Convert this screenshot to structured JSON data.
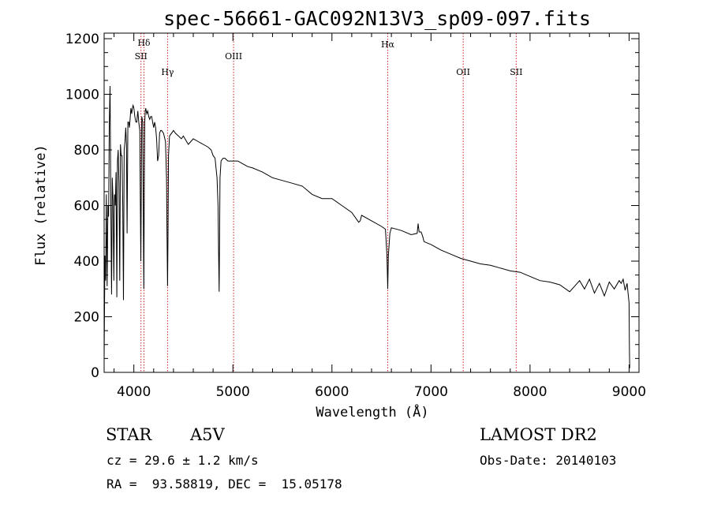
{
  "chart_data": {
    "type": "line",
    "title": "spec-56661-GAC092N13V3_sp09-097.fits",
    "xlabel": "Wavelength (Å)",
    "ylabel": "Flux (relative)",
    "xlim": [
      3700,
      9100
    ],
    "ylim": [
      0,
      1220
    ],
    "xticks": [
      4000,
      5000,
      6000,
      7000,
      8000,
      9000
    ],
    "yticks": [
      0,
      200,
      400,
      600,
      800,
      1000,
      1200
    ],
    "grid": false,
    "series": [
      {
        "x": [
          3700,
          3708,
          3715,
          3722,
          3730,
          3738,
          3745,
          3752,
          3760,
          3768,
          3775,
          3782,
          3790,
          3798,
          3805,
          3812,
          3820,
          3828,
          3835,
          3842,
          3850,
          3858,
          3865,
          3872,
          3880,
          3888,
          3895,
          3902,
          3910,
          3918,
          3925,
          3932,
          3940,
          3948,
          3955,
          3962,
          3970,
          3978,
          3985,
          3992,
          4000,
          4010,
          4020,
          4030,
          4040,
          4050,
          4060,
          4070,
          4080,
          4090,
          4095,
          4101,
          4106,
          4110,
          4115,
          4120,
          4130,
          4140,
          4150,
          4160,
          4170,
          4180,
          4190,
          4200,
          4210,
          4220,
          4230,
          4240,
          4250,
          4260,
          4270,
          4280,
          4300,
          4320,
          4330,
          4335,
          4340,
          4345,
          4350,
          4360,
          4380,
          4400,
          4420,
          4450,
          4480,
          4500,
          4550,
          4600,
          4650,
          4700,
          4750,
          4780,
          4800,
          4820,
          4840,
          4850,
          4855,
          4861,
          4866,
          4870,
          4880,
          4900,
          4920,
          4950,
          5000,
          5050,
          5100,
          5150,
          5200,
          5300,
          5400,
          5500,
          5600,
          5700,
          5800,
          5900,
          6000,
          6100,
          6200,
          6270,
          6285,
          6300,
          6400,
          6500,
          6540,
          6555,
          6563,
          6570,
          6585,
          6600,
          6700,
          6800,
          6860,
          6870,
          6880,
          6900,
          6915,
          6930,
          7000,
          7100,
          7200,
          7300,
          7400,
          7500,
          7600,
          7700,
          7800,
          7900,
          8000,
          8100,
          8200,
          8300,
          8400,
          8500,
          8550,
          8600,
          8650,
          8700,
          8750,
          8800,
          8850,
          8900,
          8920,
          8940,
          8960,
          8980,
          9000,
          9003,
          9006
        ],
        "y": [
          50,
          420,
          330,
          640,
          310,
          600,
          560,
          880,
          1030,
          600,
          280,
          700,
          620,
          330,
          640,
          600,
          720,
          270,
          760,
          800,
          680,
          330,
          820,
          780,
          780,
          600,
          260,
          800,
          830,
          880,
          820,
          500,
          900,
          900,
          880,
          910,
          950,
          930,
          950,
          960,
          950,
          920,
          900,
          900,
          940,
          900,
          870,
          400,
          920,
          900,
          600,
          300,
          720,
          900,
          940,
          950,
          930,
          940,
          920,
          910,
          920,
          920,
          900,
          880,
          900,
          880,
          840,
          760,
          780,
          860,
          870,
          870,
          860,
          830,
          700,
          500,
          310,
          500,
          780,
          850,
          860,
          870,
          860,
          850,
          840,
          850,
          820,
          840,
          830,
          820,
          810,
          800,
          780,
          770,
          700,
          600,
          450,
          290,
          520,
          700,
          760,
          770,
          770,
          760,
          760,
          760,
          750,
          740,
          735,
          720,
          700,
          690,
          680,
          670,
          640,
          625,
          625,
          600,
          575,
          540,
          545,
          565,
          545,
          525,
          515,
          420,
          300,
          420,
          500,
          520,
          510,
          495,
          500,
          535,
          505,
          505,
          490,
          470,
          460,
          440,
          425,
          410,
          400,
          390,
          385,
          375,
          365,
          360,
          345,
          330,
          325,
          315,
          290,
          330,
          300,
          335,
          285,
          320,
          275,
          325,
          300,
          330,
          320,
          335,
          295,
          320,
          250,
          100,
          15
        ]
      }
    ],
    "annotations": [
      {
        "label": "Hδ",
        "x": 4101.7
      },
      {
        "label": "SII",
        "x": 4072
      },
      {
        "label": "Hγ",
        "x": 4340.5
      },
      {
        "label": "OIII",
        "x": 5007
      },
      {
        "label": "Hα",
        "x": 6563
      },
      {
        "label": "OII",
        "x": 7325
      },
      {
        "label": "SII",
        "x": 7860
      }
    ]
  },
  "info": {
    "object_class": "STAR",
    "subclass": "A5V",
    "cz": "cz = 29.6 ± 1.2 km/s",
    "radec": "RA =  93.58819, DEC =  15.05178",
    "survey": "LAMOST DR2",
    "obs_date": "Obs-Date: 20140103"
  },
  "colors": {
    "spectrum": "#000000",
    "line_marker": "#cc2020",
    "background": "#ffffff"
  }
}
